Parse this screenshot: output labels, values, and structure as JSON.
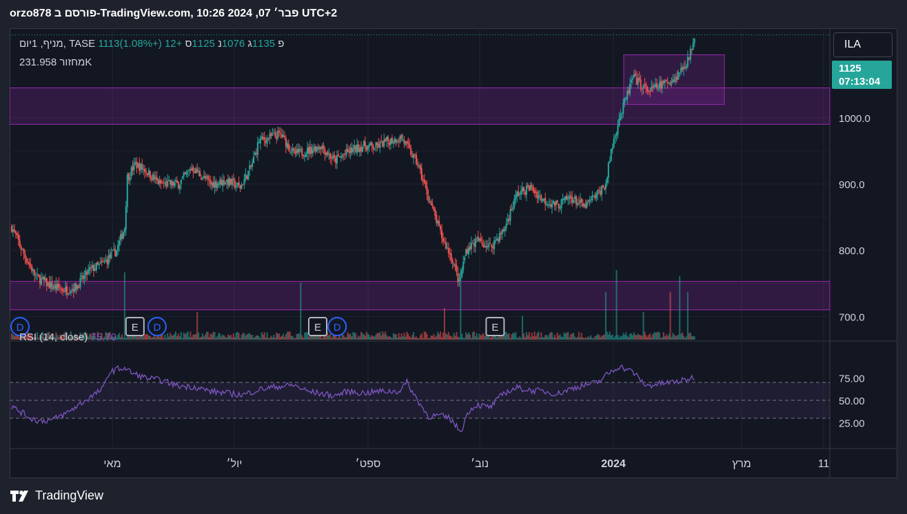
{
  "header": {
    "title": "orzo878 פורסם ב-TradingView.com, פבר׳ 07, 2024 10:26 UTC+2"
  },
  "symbol_legend": {
    "name": "מניף, 1יום, TASE",
    "open_label": "פ",
    "open": "1113",
    "high_label": "ג",
    "high": "1135",
    "low_label": "נ",
    "low": "1076",
    "close_label": "ס",
    "close": "1125",
    "change": "+12 (+1.08%)"
  },
  "volume_legend": {
    "label": "מחזור",
    "value": "231.958K"
  },
  "rsi_legend": {
    "label": "RSI (14, close)",
    "value": "75.70"
  },
  "currency_button": "ILA",
  "price_tag": {
    "price": "1125",
    "countdown": "07:13:04"
  },
  "brand": "TradingView",
  "colors": {
    "up": "#26a69a",
    "down": "#ef5350",
    "zone": "#9c27b0",
    "rsi": "#7e57c2",
    "background": "#131722"
  },
  "chart_data": {
    "type": "candlestick",
    "price_axis": {
      "ylim": [
        665,
        1135
      ],
      "ticks": [
        "1000.0",
        "900.0",
        "800.0",
        "700.0"
      ],
      "tick_values": [
        1000,
        900,
        800,
        700
      ]
    },
    "rsi_axis": {
      "ylim": [
        0,
        100
      ],
      "ticks": [
        "75.00",
        "50.00",
        "25.00"
      ],
      "tick_values": [
        75,
        50,
        25
      ],
      "band": [
        30,
        70
      ]
    },
    "x_ticks": [
      {
        "label": "מאי",
        "bold": false
      },
      {
        "label": "יול׳",
        "bold": false
      },
      {
        "label": "ספט׳",
        "bold": false
      },
      {
        "label": "נוב׳",
        "bold": false
      },
      {
        "label": "2024",
        "bold": true
      },
      {
        "label": "מרץ",
        "bold": false
      },
      {
        "label": "11",
        "bold": false
      }
    ],
    "zones": [
      {
        "from": 990,
        "to": 1045
      },
      {
        "from": 710,
        "to": 753
      },
      {
        "from": 1020,
        "to": 1095
      }
    ],
    "price_path": [
      [
        0,
        835
      ],
      [
        10,
        790
      ],
      [
        18,
        760
      ],
      [
        30,
        745
      ],
      [
        40,
        740
      ],
      [
        48,
        745
      ],
      [
        58,
        770
      ],
      [
        68,
        780
      ],
      [
        78,
        800
      ],
      [
        84,
        835
      ],
      [
        86,
        910
      ],
      [
        92,
        930
      ],
      [
        100,
        920
      ],
      [
        110,
        900
      ],
      [
        124,
        900
      ],
      [
        134,
        925
      ],
      [
        148,
        900
      ],
      [
        160,
        905
      ],
      [
        170,
        895
      ],
      [
        178,
        925
      ],
      [
        184,
        965
      ],
      [
        200,
        975
      ],
      [
        210,
        945
      ],
      [
        220,
        950
      ],
      [
        230,
        958
      ],
      [
        240,
        935
      ],
      [
        252,
        950
      ],
      [
        262,
        958
      ],
      [
        270,
        955
      ],
      [
        280,
        965
      ],
      [
        290,
        970
      ],
      [
        296,
        950
      ],
      [
        302,
        930
      ],
      [
        310,
        880
      ],
      [
        320,
        820
      ],
      [
        328,
        785
      ],
      [
        333,
        750
      ],
      [
        338,
        800
      ],
      [
        346,
        815
      ],
      [
        356,
        805
      ],
      [
        366,
        830
      ],
      [
        376,
        885
      ],
      [
        386,
        895
      ],
      [
        396,
        875
      ],
      [
        406,
        868
      ],
      [
        416,
        880
      ],
      [
        426,
        865
      ],
      [
        436,
        885
      ],
      [
        442,
        900
      ],
      [
        446,
        950
      ],
      [
        452,
        1000
      ],
      [
        454,
        1010
      ],
      [
        462,
        1060
      ],
      [
        474,
        1040
      ],
      [
        484,
        1050
      ],
      [
        494,
        1060
      ],
      [
        504,
        1090
      ],
      [
        508,
        1125
      ]
    ],
    "volume_spikes": [
      {
        "x": 84,
        "v": 0.85
      },
      {
        "x": 138,
        "v": 0.35
      },
      {
        "x": 215,
        "v": 0.72
      },
      {
        "x": 322,
        "v": 0.4
      },
      {
        "x": 334,
        "v": 0.9
      },
      {
        "x": 380,
        "v": 0.3
      },
      {
        "x": 442,
        "v": 0.6
      },
      {
        "x": 450,
        "v": 0.88
      },
      {
        "x": 470,
        "v": 0.35
      },
      {
        "x": 490,
        "v": 0.6
      },
      {
        "x": 497,
        "v": 0.8
      },
      {
        "x": 503,
        "v": 0.6
      }
    ],
    "markers": [
      {
        "x": 0,
        "type": "D"
      },
      {
        "x": 84,
        "type": "E"
      },
      {
        "x": 102,
        "type": "D"
      },
      {
        "x": 220,
        "type": "E"
      },
      {
        "x": 236,
        "type": "D"
      },
      {
        "x": 352,
        "type": "E"
      }
    ],
    "rsi_path": [
      [
        0,
        43
      ],
      [
        8,
        36
      ],
      [
        14,
        30
      ],
      [
        20,
        27
      ],
      [
        30,
        28
      ],
      [
        40,
        35
      ],
      [
        50,
        45
      ],
      [
        60,
        55
      ],
      [
        68,
        63
      ],
      [
        72,
        80
      ],
      [
        78,
        85
      ],
      [
        84,
        86
      ],
      [
        90,
        80
      ],
      [
        100,
        75
      ],
      [
        112,
        72
      ],
      [
        124,
        66
      ],
      [
        136,
        65
      ],
      [
        148,
        60
      ],
      [
        160,
        58
      ],
      [
        172,
        56
      ],
      [
        184,
        62
      ],
      [
        196,
        65
      ],
      [
        210,
        67
      ],
      [
        220,
        60
      ],
      [
        228,
        58
      ],
      [
        240,
        55
      ],
      [
        250,
        60
      ],
      [
        262,
        58
      ],
      [
        274,
        60
      ],
      [
        288,
        60
      ],
      [
        294,
        70
      ],
      [
        302,
        50
      ],
      [
        310,
        32
      ],
      [
        318,
        33
      ],
      [
        326,
        30
      ],
      [
        334,
        15
      ],
      [
        340,
        38
      ],
      [
        346,
        45
      ],
      [
        356,
        42
      ],
      [
        366,
        58
      ],
      [
        376,
        64
      ],
      [
        386,
        61
      ],
      [
        396,
        60
      ],
      [
        406,
        57
      ],
      [
        416,
        63
      ],
      [
        426,
        67
      ],
      [
        436,
        70
      ],
      [
        444,
        80
      ],
      [
        452,
        88
      ],
      [
        462,
        82
      ],
      [
        472,
        66
      ],
      [
        480,
        68
      ],
      [
        490,
        70
      ],
      [
        500,
        72
      ],
      [
        508,
        76
      ]
    ]
  }
}
